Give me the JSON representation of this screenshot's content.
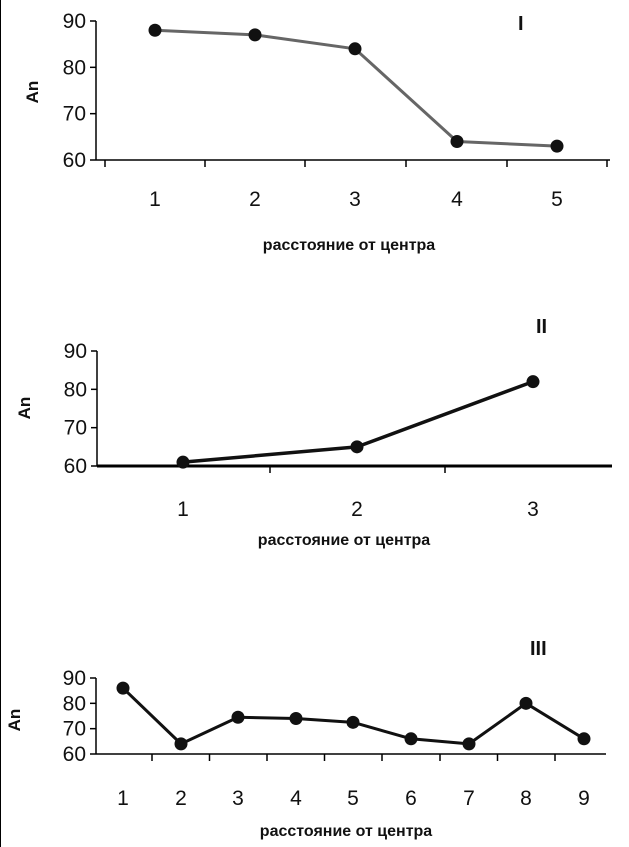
{
  "chart_data": [
    {
      "type": "line",
      "title": "I",
      "xlabel": "расстояние от центра",
      "ylabel": "An",
      "categories": [
        "1",
        "2",
        "3",
        "4",
        "5"
      ],
      "yticks": [
        "90",
        "80",
        "70",
        "60"
      ],
      "ylim": [
        60,
        90
      ],
      "values": [
        88,
        87,
        84,
        64,
        63
      ],
      "color": "#666666"
    },
    {
      "type": "line",
      "title": "II",
      "xlabel": "расстояние от центра",
      "ylabel": "An",
      "categories": [
        "1",
        "2",
        "3"
      ],
      "yticks": [
        "90",
        "80",
        "70",
        "60"
      ],
      "ylim": [
        60,
        90
      ],
      "values": [
        61,
        65,
        82
      ],
      "color": "#111111"
    },
    {
      "type": "line",
      "title": "III",
      "xlabel": "расстояние от центра",
      "ylabel": "An",
      "categories": [
        "1",
        "2",
        "3",
        "4",
        "5",
        "6",
        "7",
        "8",
        "9"
      ],
      "yticks": [
        "90",
        "80",
        "70",
        "60"
      ],
      "ylim": [
        60,
        90
      ],
      "values": [
        86,
        64,
        74.5,
        74,
        72.5,
        66,
        64,
        80,
        66
      ],
      "color": "#111111"
    }
  ]
}
